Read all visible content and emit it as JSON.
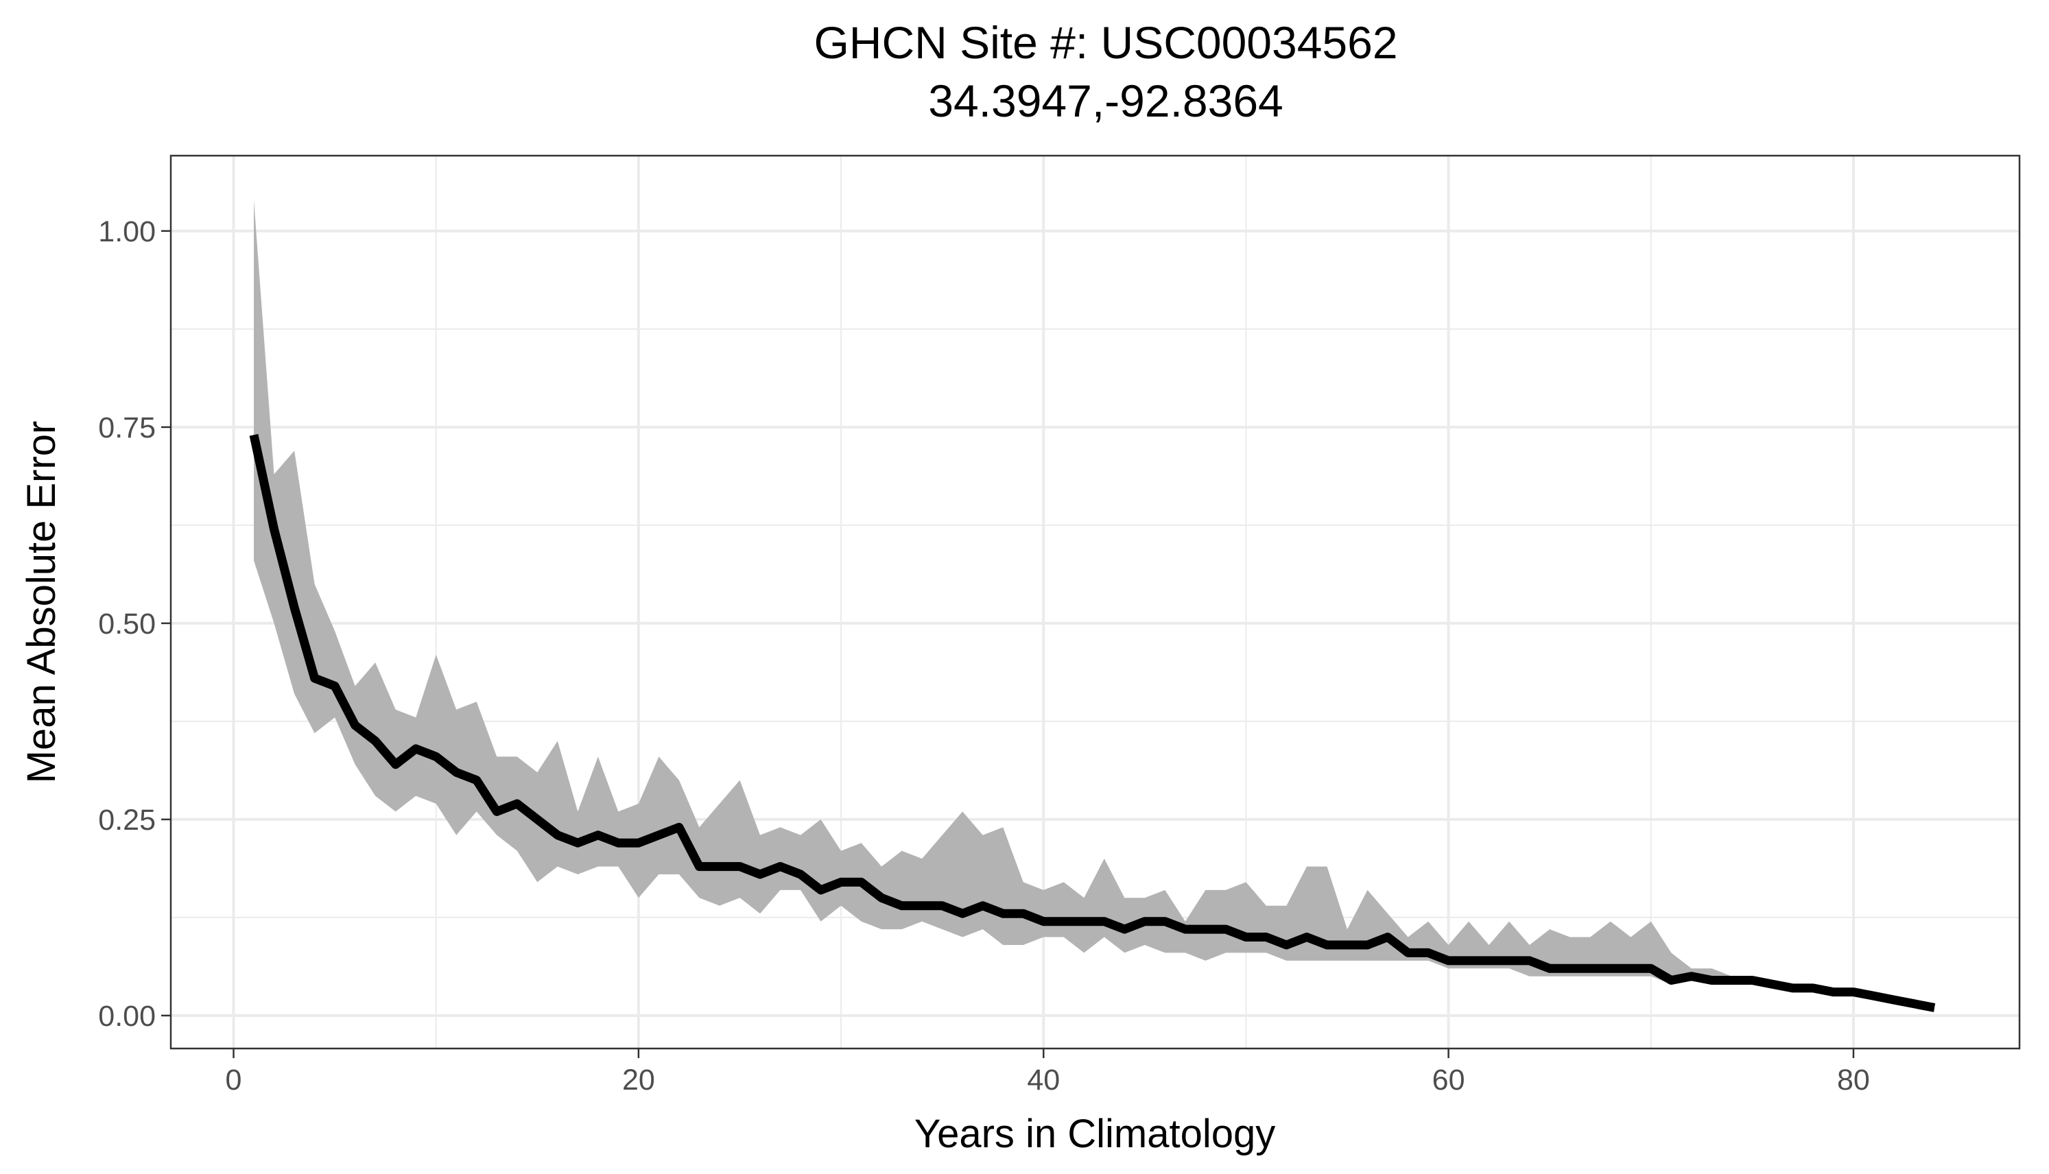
{
  "chart_data": {
    "type": "line",
    "title": "GHCN Site #: USC00034562",
    "subtitle": "34.3947,-92.8364",
    "xlabel": "Years in Climatology",
    "ylabel": "Mean Absolute Error",
    "xlim": [
      -3.1,
      88.2
    ],
    "ylim": [
      -0.042,
      1.096
    ],
    "x_ticks": [
      0,
      20,
      40,
      60,
      80
    ],
    "x_tick_labels": [
      "0",
      "20",
      "40",
      "60",
      "80"
    ],
    "y_ticks": [
      0,
      0.25,
      0.5,
      0.75,
      1.0
    ],
    "y_tick_labels": [
      "0.00",
      "0.25",
      "0.50",
      "0.75",
      "1.00"
    ],
    "grid": true,
    "legend": "none",
    "colors": {
      "line": "#000000",
      "ribbon": "#b3b3b3",
      "grid": "#ebebeb",
      "panel_border": "#333333"
    },
    "series": [
      {
        "x": [
          1,
          2,
          3,
          4,
          5,
          6,
          7,
          8,
          9,
          10,
          11,
          12,
          13,
          14,
          15,
          16,
          17,
          18,
          19,
          20,
          21,
          22,
          23,
          24,
          25,
          26,
          27,
          28,
          29,
          30,
          31,
          32,
          33,
          34,
          35,
          36,
          37,
          38,
          39,
          40,
          41,
          42,
          43,
          44,
          45,
          46,
          47,
          48,
          49,
          50,
          51,
          52,
          53,
          54,
          55,
          56,
          57,
          58,
          59,
          60,
          61,
          62,
          63,
          64,
          65,
          66,
          67,
          68,
          69,
          70,
          71,
          72,
          73,
          74,
          75,
          76,
          77,
          78,
          79,
          80,
          81,
          82,
          83,
          84
        ],
        "y": [
          0.74,
          0.62,
          0.52,
          0.43,
          0.42,
          0.37,
          0.35,
          0.32,
          0.34,
          0.33,
          0.31,
          0.3,
          0.26,
          0.27,
          0.25,
          0.23,
          0.22,
          0.23,
          0.22,
          0.22,
          0.23,
          0.24,
          0.19,
          0.19,
          0.19,
          0.18,
          0.19,
          0.18,
          0.16,
          0.17,
          0.17,
          0.15,
          0.14,
          0.14,
          0.14,
          0.13,
          0.14,
          0.13,
          0.13,
          0.12,
          0.12,
          0.12,
          0.12,
          0.11,
          0.12,
          0.12,
          0.11,
          0.11,
          0.11,
          0.1,
          0.1,
          0.09,
          0.1,
          0.09,
          0.09,
          0.09,
          0.1,
          0.08,
          0.08,
          0.07,
          0.07,
          0.07,
          0.07,
          0.07,
          0.06,
          0.06,
          0.06,
          0.06,
          0.06,
          0.06,
          0.045,
          0.05,
          0.045,
          0.045,
          0.045,
          0.04,
          0.035,
          0.035,
          0.03,
          0.03,
          0.025,
          0.02,
          0.015,
          0.01
        ],
        "lower": [
          0.58,
          0.5,
          0.41,
          0.36,
          0.38,
          0.32,
          0.28,
          0.26,
          0.28,
          0.27,
          0.23,
          0.26,
          0.23,
          0.21,
          0.17,
          0.19,
          0.18,
          0.19,
          0.19,
          0.15,
          0.18,
          0.18,
          0.15,
          0.14,
          0.15,
          0.13,
          0.16,
          0.16,
          0.12,
          0.14,
          0.12,
          0.11,
          0.11,
          0.12,
          0.11,
          0.1,
          0.11,
          0.09,
          0.09,
          0.1,
          0.1,
          0.08,
          0.1,
          0.08,
          0.09,
          0.08,
          0.08,
          0.07,
          0.08,
          0.08,
          0.08,
          0.07,
          0.07,
          0.07,
          0.07,
          0.07,
          0.07,
          0.07,
          0.07,
          0.06,
          0.06,
          0.06,
          0.06,
          0.05,
          0.05,
          0.05,
          0.05,
          0.05,
          0.05,
          0.05,
          0.04,
          0.045,
          0.04,
          0.04,
          0.04,
          0.035,
          0.03,
          0.03,
          0.025,
          0.025,
          0.02,
          0.015,
          0.01,
          0.005
        ],
        "upper": [
          1.04,
          0.69,
          0.72,
          0.55,
          0.49,
          0.42,
          0.45,
          0.39,
          0.38,
          0.46,
          0.39,
          0.4,
          0.33,
          0.33,
          0.31,
          0.35,
          0.26,
          0.33,
          0.26,
          0.27,
          0.33,
          0.3,
          0.24,
          0.27,
          0.3,
          0.23,
          0.24,
          0.23,
          0.25,
          0.21,
          0.22,
          0.19,
          0.21,
          0.2,
          0.23,
          0.26,
          0.23,
          0.24,
          0.17,
          0.16,
          0.17,
          0.15,
          0.2,
          0.15,
          0.15,
          0.16,
          0.12,
          0.16,
          0.16,
          0.17,
          0.14,
          0.14,
          0.19,
          0.19,
          0.11,
          0.16,
          0.13,
          0.1,
          0.12,
          0.09,
          0.12,
          0.09,
          0.12,
          0.09,
          0.11,
          0.1,
          0.1,
          0.12,
          0.1,
          0.12,
          0.08,
          0.06,
          0.06,
          0.05,
          0.05,
          0.04,
          0.035,
          0.035,
          0.03,
          0.03,
          0.025,
          0.02,
          0.015,
          0.01
        ]
      }
    ]
  }
}
